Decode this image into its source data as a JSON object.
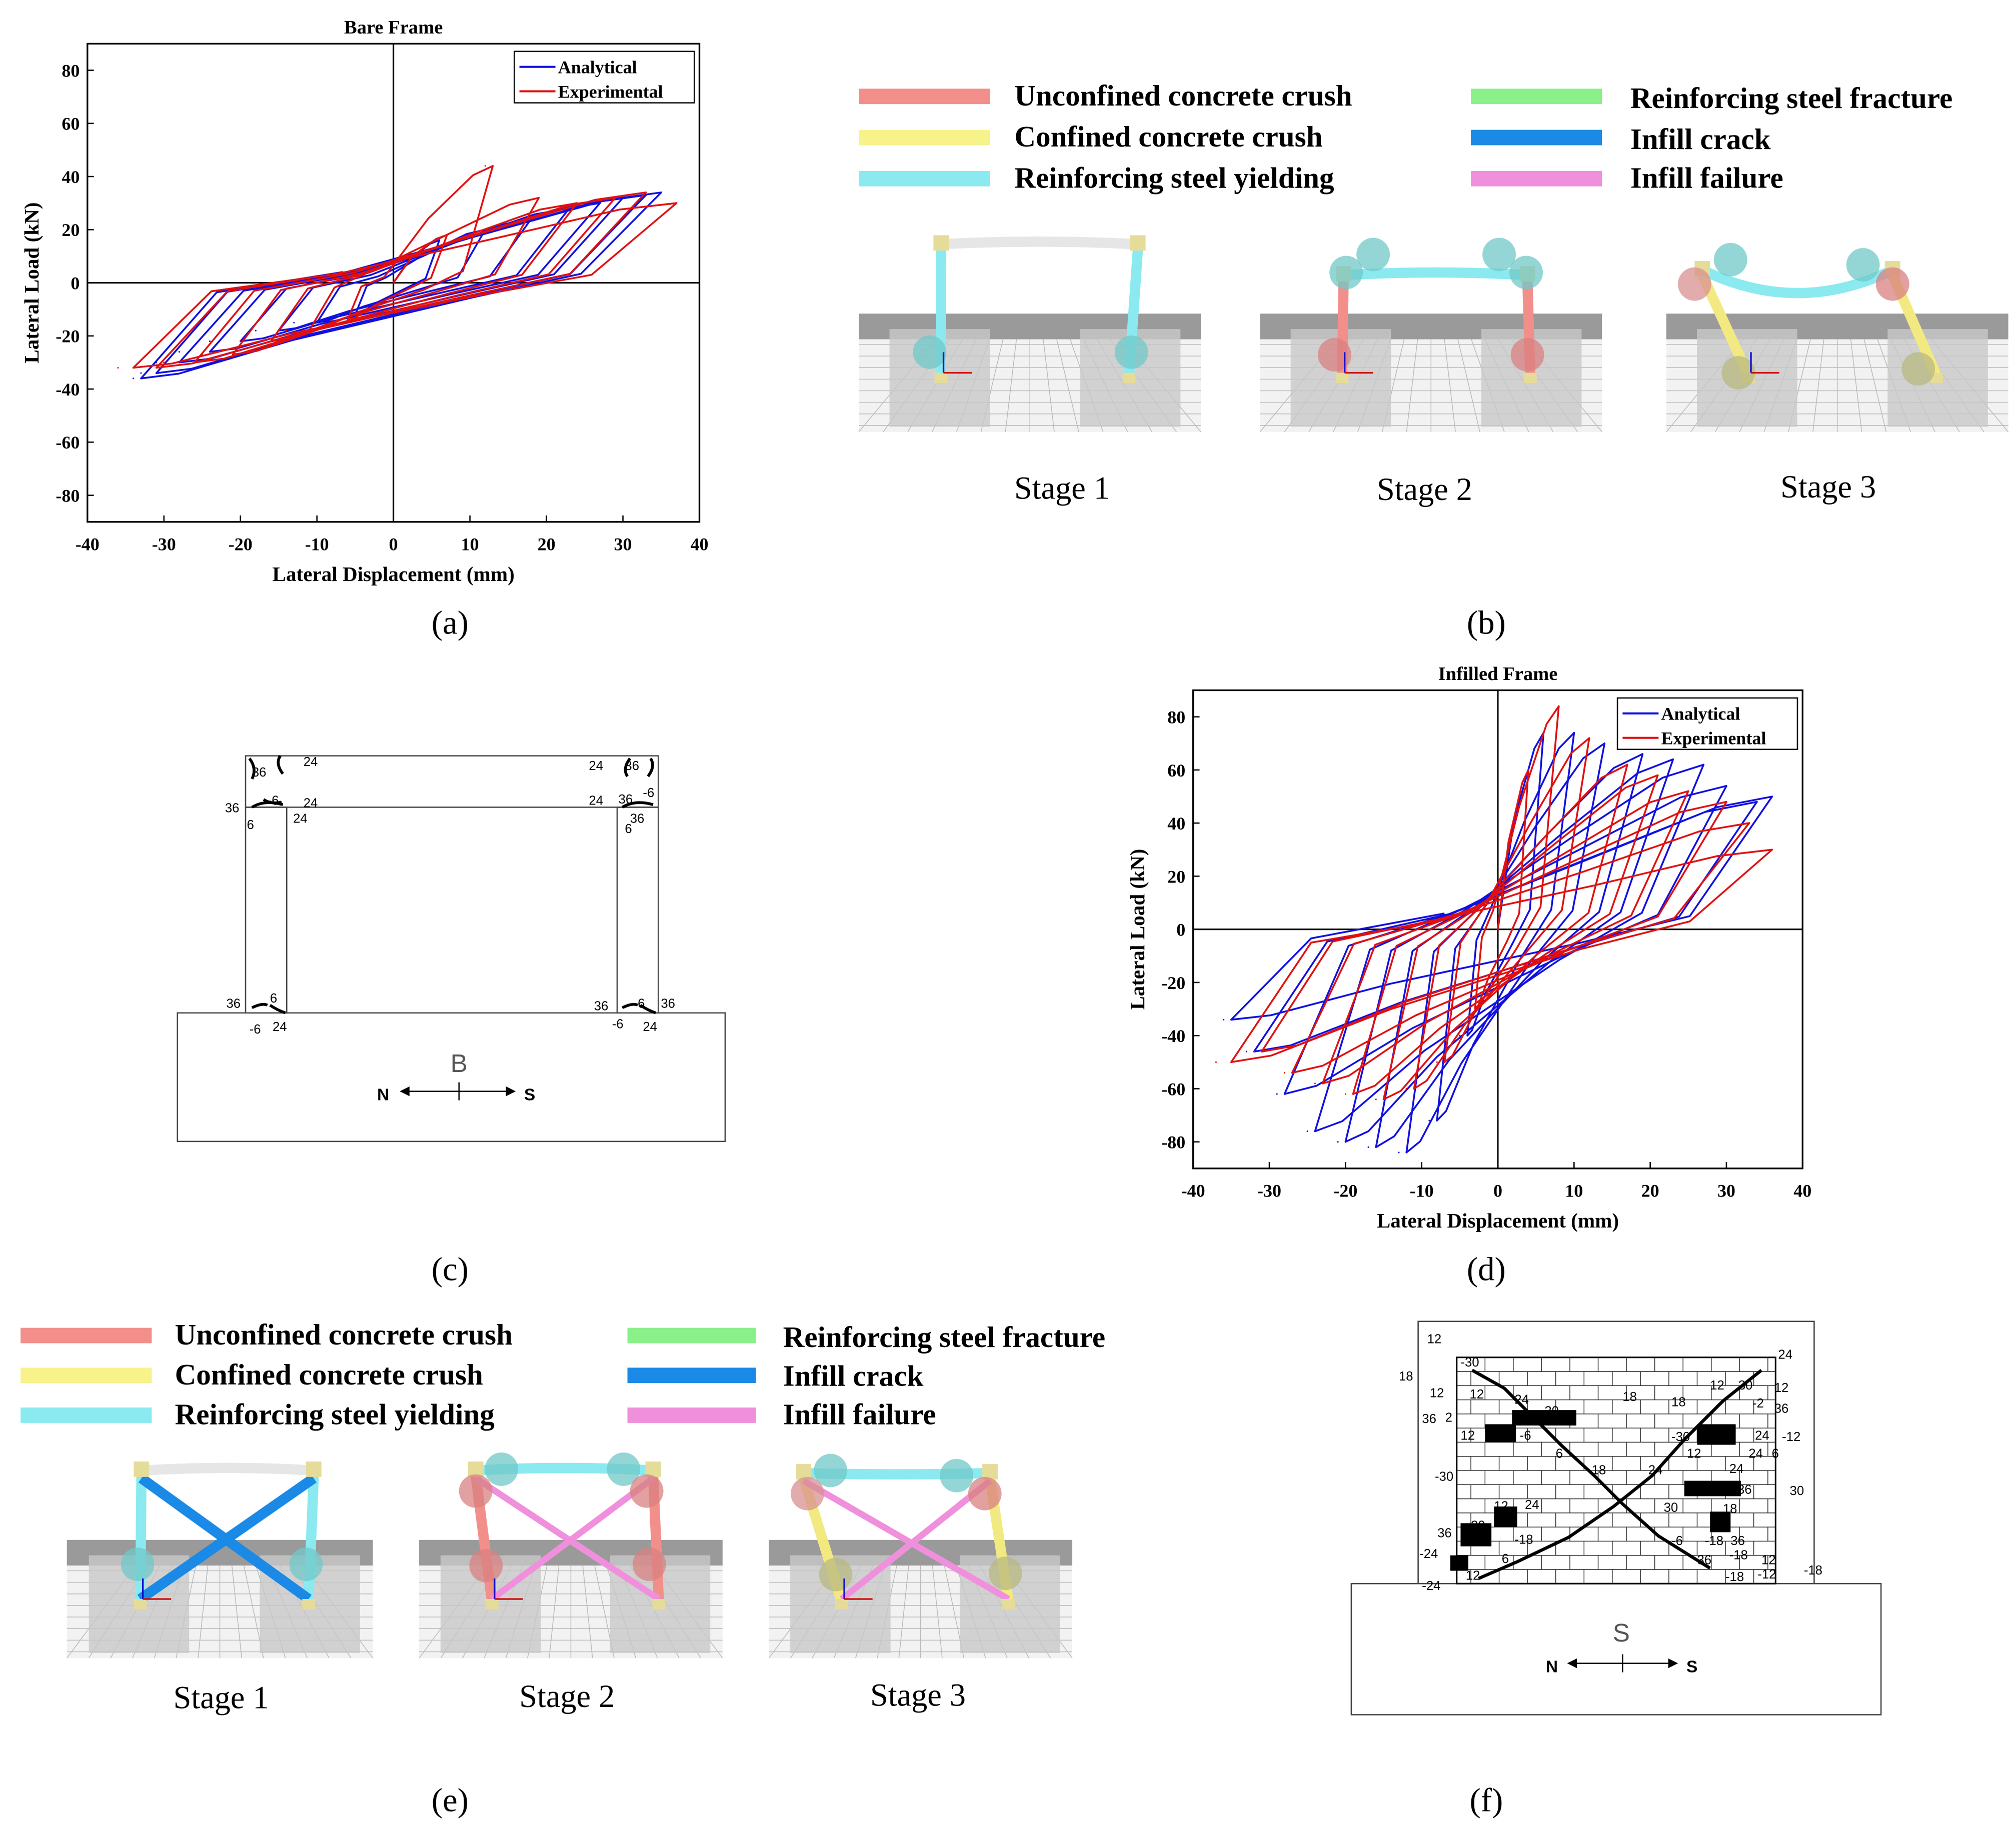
{
  "panel_labels": [
    "(a)",
    "(b)",
    "(c)",
    "(d)",
    "(e)",
    "(f)"
  ],
  "legend_b": {
    "items": [
      {
        "label": "Unconfined concrete crush",
        "color": "#f28f8a"
      },
      {
        "label": "Confined concrete crush",
        "color": "#f7f28a"
      },
      {
        "label": "Reinforcing steel yielding",
        "color": "#8aeaf0"
      },
      {
        "label": "Reinforcing steel fracture",
        "color": "#8af08a"
      },
      {
        "label": "Infill crack",
        "color": "#1a8ae6"
      },
      {
        "label": "Infill failure",
        "color": "#f090dc"
      }
    ]
  },
  "stages_b": [
    "Stage 1",
    "Stage 2",
    "Stage 3"
  ],
  "stages_e": [
    "Stage 1",
    "Stage 2",
    "Stage 3"
  ],
  "sketch_c": {
    "letter": "B",
    "north": "N",
    "south": "S",
    "crack_labels": [
      "36",
      "24",
      "36",
      "-6",
      "24",
      "6",
      "24",
      "24",
      "36",
      "36",
      "-6",
      "24",
      "6",
      "36",
      "36",
      "6",
      "-6",
      "24",
      "36",
      "6",
      "36",
      "-6",
      "24"
    ]
  },
  "sketch_f": {
    "letter": "S",
    "north": "N",
    "south": "S",
    "crack_labels": [
      "12",
      "-30",
      "18",
      "12",
      "36",
      "2",
      "12",
      "24",
      "-30",
      "18",
      "18",
      "12",
      "30",
      "24",
      "12",
      "36",
      "-2",
      "24",
      "-12",
      "12",
      "-6",
      "6",
      "-30",
      "12",
      "24",
      "6",
      "-30",
      "18",
      "24",
      "24",
      "-36",
      "12",
      "24",
      "30",
      "18",
      "30",
      "36",
      "30",
      "-18",
      "-6",
      "-18",
      "36",
      "-24",
      "6",
      "36",
      "12",
      "-18",
      "12",
      "-18",
      "-12",
      "-18",
      "-24"
    ]
  },
  "chart_data": [
    {
      "type": "line",
      "title": "Bare Frame",
      "xlabel": "Lateral Displacement (mm)",
      "ylabel": "Lateral Load (kN)",
      "xlim": [
        -40,
        40
      ],
      "ylim": [
        -90,
        90
      ],
      "xticks": [
        -40,
        -30,
        -20,
        -10,
        0,
        10,
        20,
        30,
        40
      ],
      "yticks": [
        -80,
        -60,
        -40,
        -20,
        0,
        20,
        40,
        60,
        80
      ],
      "legend_position": "top-right",
      "series": [
        {
          "name": "Analytical",
          "color": "#1010e0",
          "cycles": [
            [
              -5,
              6,
              -7
            ],
            [
              -10,
              12,
              -13
            ],
            [
              -15,
              18,
              -18
            ],
            [
              -20,
              23,
              -24
            ],
            [
              -24,
              27,
              -28
            ],
            [
              -28,
              30,
              -31
            ],
            [
              -31,
              33,
              -33
            ],
            [
              -33,
              35,
              -34
            ]
          ],
          "amps": [
            [
              -12,
              16
            ],
            [
              -15,
              20
            ],
            [
              -18,
              24
            ],
            [
              -22,
              28
            ],
            [
              -26,
              30
            ],
            [
              -30,
              32
            ],
            [
              -34,
              33
            ],
            [
              -36,
              34
            ]
          ],
          "x": [
            0,
            6,
            12,
            18,
            23,
            27,
            30,
            33,
            35,
            -7,
            -13,
            -18,
            -24,
            -28,
            -31,
            -33,
            -34
          ],
          "y": [
            0,
            16,
            20,
            24,
            28,
            30,
            32,
            33,
            34,
            -12,
            -15,
            -18,
            -22,
            -26,
            -30,
            -34,
            -36
          ]
        },
        {
          "name": "Experimental",
          "color": "#e01010",
          "cycles": [
            [
              -6,
              7,
              -8
            ],
            [
              -11,
              13,
              -14
            ],
            [
              -16,
              19,
              -20
            ],
            [
              -21,
              24,
              -25
            ],
            [
              -26,
              29,
              -30
            ],
            [
              -31,
              33,
              -34
            ],
            [
              -34,
              37,
              -36
            ]
          ],
          "amps": [
            [
              -14,
              18
            ],
            [
              -18,
              44
            ],
            [
              -22,
              32
            ],
            [
              -27,
              30
            ],
            [
              -30,
              32
            ],
            [
              -32,
              34
            ],
            [
              -32,
              30
            ]
          ],
          "x": [
            0,
            7,
            12,
            19,
            24,
            29,
            33,
            37,
            -8,
            -14,
            -20,
            -25,
            -30,
            -34,
            -36
          ],
          "y": [
            0,
            18,
            44,
            32,
            30,
            32,
            34,
            30,
            -14,
            -18,
            -22,
            -27,
            -30,
            -32,
            -32
          ]
        }
      ]
    },
    {
      "type": "line",
      "title": "Infilled Frame",
      "xlabel": "Lateral Displacement (mm)",
      "ylabel": "Lateral Load (kN)",
      "xlim": [
        -40,
        40
      ],
      "ylim": [
        -90,
        90
      ],
      "xticks": [
        -40,
        -30,
        -20,
        -10,
        0,
        10,
        20,
        30,
        40
      ],
      "yticks": [
        -80,
        -60,
        -40,
        -20,
        0,
        20,
        40,
        60,
        80
      ],
      "legend_position": "top-right",
      "series": [
        {
          "name": "Analytical",
          "color": "#1010e0",
          "cycles": [
            [
              -4,
              6,
              -5
            ],
            [
              -8,
              10,
              -9
            ],
            [
              -12,
              14,
              -13
            ],
            [
              -16,
              19,
              -17
            ],
            [
              -20,
              23,
              -21
            ],
            [
              -24,
              27,
              -25
            ],
            [
              -28,
              30,
              -29
            ],
            [
              -32,
              34,
              -33
            ],
            [
              -35,
              36,
              -36
            ]
          ],
          "amps": [
            [
              -40,
              74
            ],
            [
              -72,
              74
            ],
            [
              -84,
              70
            ],
            [
              -82,
              66
            ],
            [
              -80,
              64
            ],
            [
              -76,
              62
            ],
            [
              -62,
              54
            ],
            [
              -46,
              48
            ],
            [
              -34,
              50
            ]
          ],
          "x": [
            0,
            6,
            10,
            14,
            19,
            23,
            27,
            30,
            34,
            36,
            -5,
            -9,
            -13,
            -17,
            -21,
            -25,
            -29,
            -33,
            -36
          ],
          "y": [
            0,
            74,
            74,
            70,
            66,
            64,
            62,
            54,
            48,
            50,
            -40,
            -72,
            -84,
            -82,
            -80,
            -76,
            -62,
            -46,
            -34
          ]
        },
        {
          "name": "Experimental",
          "color": "#e01010",
          "cycles": [
            [
              -3,
              4,
              -4
            ],
            [
              -7,
              8,
              -8
            ],
            [
              -11,
              12,
              -12
            ],
            [
              -15,
              17,
              -16
            ],
            [
              -19,
              21,
              -20
            ],
            [
              -23,
              25,
              -24
            ],
            [
              -27,
              30,
              -28
            ],
            [
              -31,
              33,
              -32
            ],
            [
              -35,
              36,
              -37
            ]
          ],
          "amps": [
            [
              -30,
              60
            ],
            [
              -50,
              84
            ],
            [
              -60,
              72
            ],
            [
              -64,
              62
            ],
            [
              -62,
              58
            ],
            [
              -58,
              52
            ],
            [
              -54,
              48
            ],
            [
              -46,
              40
            ],
            [
              -50,
              30
            ]
          ],
          "x": [
            0,
            4,
            8,
            12,
            17,
            21,
            25,
            30,
            33,
            36,
            -4,
            -8,
            -12,
            -16,
            -20,
            -24,
            -28,
            -32,
            -37
          ],
          "y": [
            0,
            60,
            84,
            72,
            62,
            58,
            52,
            48,
            40,
            30,
            -30,
            -50,
            -60,
            -64,
            -62,
            -58,
            -54,
            -46,
            -50
          ]
        }
      ]
    }
  ]
}
